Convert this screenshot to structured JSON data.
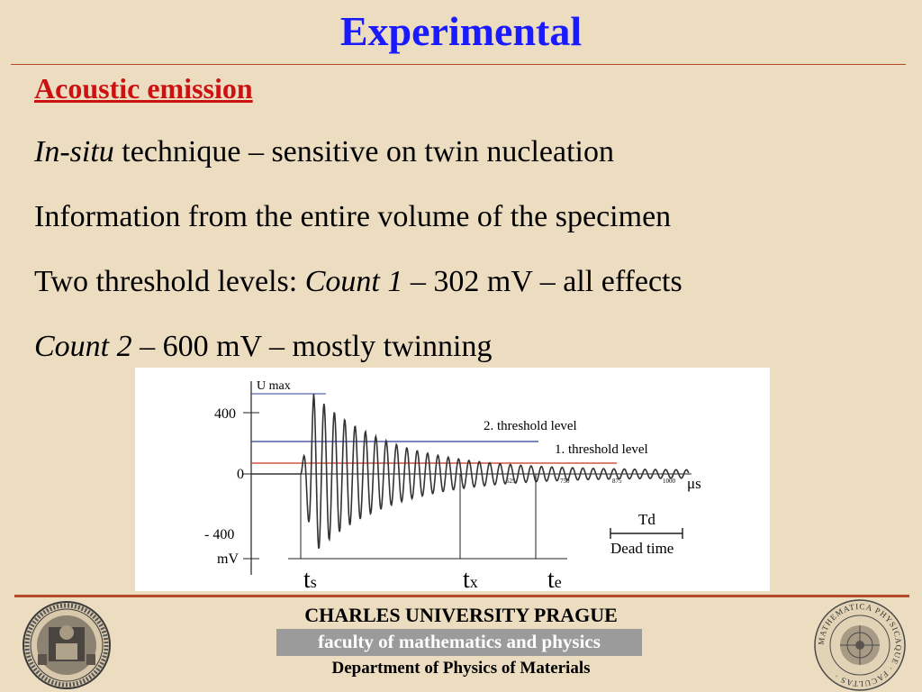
{
  "slide": {
    "title": "Experimental",
    "section_heading": "Acoustic emission",
    "line1_em": "In-situ",
    "line1_rest": " technique – sensitive on twin nucleation",
    "line2": "Information from the entire volume of the specimen",
    "line3_pre": "Two threshold levels: ",
    "line3_em": "Count 1",
    "line3_post": " – 302 mV – all effects",
    "line4_em": "Count 2",
    "line4_post": " – 600 mV – mostly twinning"
  },
  "figure": {
    "umax_label": "U max",
    "y_tick_400": "400",
    "y_tick_0": "0",
    "y_tick_neg400": "- 400",
    "y_unit": "mV",
    "x_unit": "μs",
    "x_ticks": [
      "625",
      "750",
      "875",
      "1000"
    ],
    "threshold2_label": "2. threshold level",
    "threshold1_label": "1. threshold level",
    "td_label": "Td",
    "dead_time_label": "Dead time",
    "ts_main": "t",
    "ts_sub": "s",
    "tx_main": "t",
    "tx_sub": "x",
    "te_main": "t",
    "te_sub": "e",
    "colors": {
      "threshold2": "#2f3f9a",
      "threshold1": "#c8321e",
      "signal": "#333333"
    }
  },
  "footer": {
    "university": "CHARLES UNIVERSITY PRAGUE",
    "faculty": "faculty of mathematics and physics",
    "department": "Department of Physics of Materials",
    "right_seal_text": "MATHEMATICA PHYSICAQUE · FACULTAS ·"
  }
}
